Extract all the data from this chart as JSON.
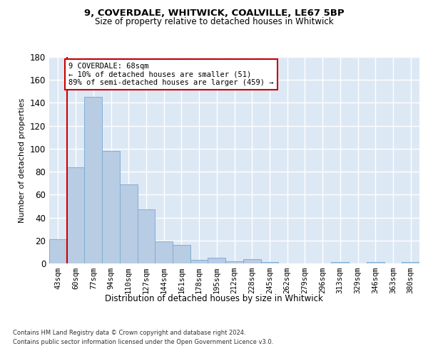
{
  "title1": "9, COVERDALE, WHITWICK, COALVILLE, LE67 5BP",
  "title2": "Size of property relative to detached houses in Whitwick",
  "xlabel": "Distribution of detached houses by size in Whitwick",
  "ylabel": "Number of detached properties",
  "footer1": "Contains HM Land Registry data © Crown copyright and database right 2024.",
  "footer2": "Contains public sector information licensed under the Open Government Licence v3.0.",
  "bins": [
    "43sqm",
    "60sqm",
    "77sqm",
    "94sqm",
    "110sqm",
    "127sqm",
    "144sqm",
    "161sqm",
    "178sqm",
    "195sqm",
    "212sqm",
    "228sqm",
    "245sqm",
    "262sqm",
    "279sqm",
    "296sqm",
    "313sqm",
    "329sqm",
    "346sqm",
    "363sqm",
    "380sqm"
  ],
  "values": [
    21,
    84,
    145,
    98,
    69,
    47,
    19,
    16,
    3,
    5,
    2,
    4,
    1,
    0,
    0,
    0,
    1,
    0,
    1,
    0,
    1
  ],
  "bar_color": "#b8cce4",
  "bar_edge_color": "#7fafd4",
  "ylim": [
    0,
    180
  ],
  "yticks": [
    0,
    20,
    40,
    60,
    80,
    100,
    120,
    140,
    160,
    180
  ],
  "annotation_text": "9 COVERDALE: 68sqm\n← 10% of detached houses are smaller (51)\n89% of semi-detached houses are larger (459) →",
  "annotation_box_color": "#ffffff",
  "annotation_box_edge": "#cc0000",
  "vline_color": "#cc0000",
  "plot_bg_color": "#dde8f5",
  "grid_color": "#ffffff"
}
